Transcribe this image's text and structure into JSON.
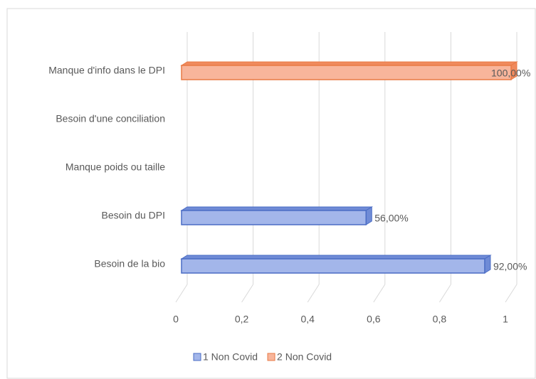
{
  "chart_data": {
    "type": "bar3d-horizontal",
    "categories": [
      "Manque d'info dans le DPI",
      "Besoin d'une conciliation",
      "Manque poids ou taille",
      "Besoin du DPI",
      "Besoin de la bio"
    ],
    "series": [
      {
        "name": "1 Non Covid",
        "color": "#a3b6ea",
        "values": [
          null,
          null,
          null,
          0.56,
          0.92
        ],
        "value_labels": [
          null,
          null,
          null,
          "56,00%",
          "92,00%"
        ]
      },
      {
        "name": "2 Non Covid",
        "color": "#f8b59b",
        "values": [
          1,
          null,
          null,
          null,
          null
        ],
        "value_labels": [
          "100,00%",
          null,
          null,
          null,
          null
        ]
      }
    ],
    "xlim": [
      0,
      1
    ],
    "xticks": [
      0,
      {
        "value": 0.2,
        "label": "0,2"
      },
      {
        "value": 0.4,
        "label": "0,4"
      },
      {
        "value": 0.6,
        "label": "0,6"
      },
      {
        "value": 0.8,
        "label": "0,8"
      },
      1
    ],
    "grid": true,
    "legend": "bottom"
  }
}
